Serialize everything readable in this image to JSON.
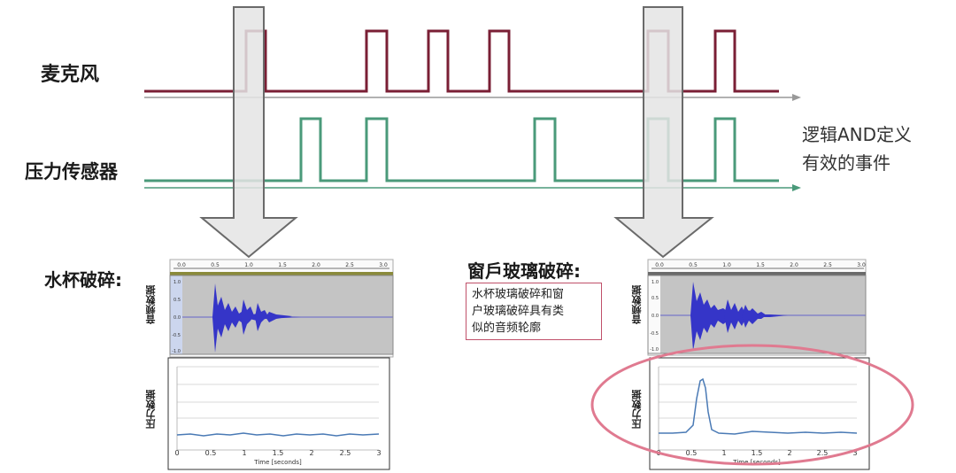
{
  "labels": {
    "microphone": "麦克风",
    "pressure_sensor": "压力传感器",
    "and_line1": "逻辑AND定义",
    "and_line2": "有效的事件",
    "cup_break": "水杯破碎:",
    "window_break": "窗戶玻璃破碎:",
    "note_line1": "水杯玻璃破碎和窗",
    "note_line2": "户玻璃破碎具有类",
    "note_line3": "似的音频轮廓"
  },
  "axis": {
    "audio_ylabel": "音频数据",
    "pressure_ylabel": "压力数据",
    "time_label": "Time [seconds]",
    "x_ticks": [
      "0",
      "0.5",
      "1",
      "1.5",
      "2",
      "2.5",
      "3"
    ],
    "top_ticks": [
      "0.0",
      "0.5",
      "1.0",
      "1.5",
      "2.0",
      "2.5",
      "3.0"
    ],
    "amp_ticks": [
      "1.0",
      "0.5",
      "0.0",
      "-0.5",
      "-1.0"
    ]
  },
  "colors": {
    "microphone_signal": "#7a1f35",
    "pressure_signal": "#4a9a7a",
    "arrow_fill": "#e6e6e6",
    "waveform": "#3333cc",
    "pressure_trace": "#4a7ab5",
    "highlight_ellipse": "#e07a90"
  }
}
